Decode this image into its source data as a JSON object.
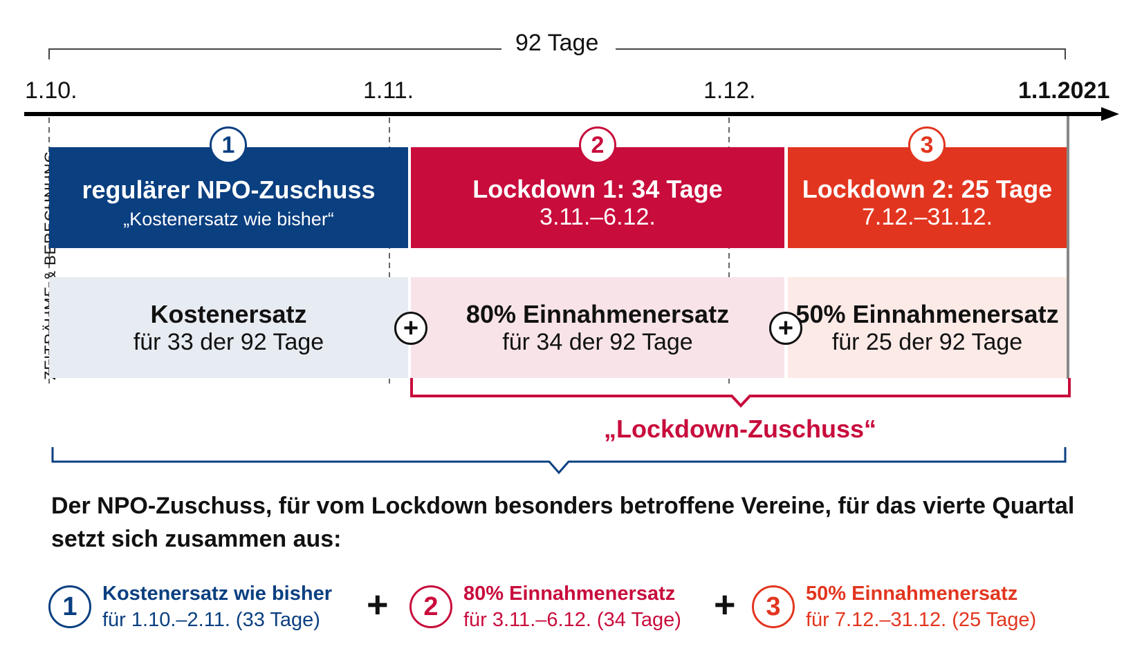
{
  "colors": {
    "blue": "#0a3f80",
    "crimson": "#c80c3c",
    "orange_red": "#e2351f",
    "blue_light": "#e7ebf2",
    "pink_light": "#f8e4e8",
    "peach_light": "#fceae7"
  },
  "span_label": "92 Tage",
  "dates": [
    "1.10.",
    "1.11.",
    "1.12.",
    "1.1.2021"
  ],
  "side_label": "ZEITRÄUME & BERECHNUNG",
  "periods": [
    {
      "number": "1",
      "title": "regulärer NPO-Zuschuss",
      "subtitle": "„Kostenersatz wie bisher“",
      "calc_title": "Kostenersatz",
      "calc_sub": "für 33 der 92 Tage"
    },
    {
      "number": "2",
      "title": "Lockdown 1: 34 Tage",
      "subtitle": "3.11.–6.12.",
      "calc_title": "80% Einnahmenersatz",
      "calc_sub": "für 34 der 92 Tage"
    },
    {
      "number": "3",
      "title": "Lockdown 2: 25 Tage",
      "subtitle": "7.12.–31.12.",
      "calc_title": "50% Einnahmenersatz",
      "calc_sub": "für 25 der 92 Tage"
    }
  ],
  "plus_sign": "+",
  "lockdown_label": "„Lockdown-Zuschuss“",
  "summary": "Der NPO-Zuschuss, für vom Lockdown besonders betroffene Vereine, für das vierte Quartal setzt sich zusammen aus:",
  "legend": [
    {
      "number": "1",
      "title": "Kostenersatz wie bisher",
      "sub": "für 1.10.–2.11. (33 Tage)"
    },
    {
      "number": "2",
      "title": "80% Einnahmenersatz",
      "sub": "für 3.11.–6.12. (34 Tage)"
    },
    {
      "number": "3",
      "title": "50% Einnahmenersatz",
      "sub": "für 7.12.–31.12. (25 Tage)"
    }
  ]
}
